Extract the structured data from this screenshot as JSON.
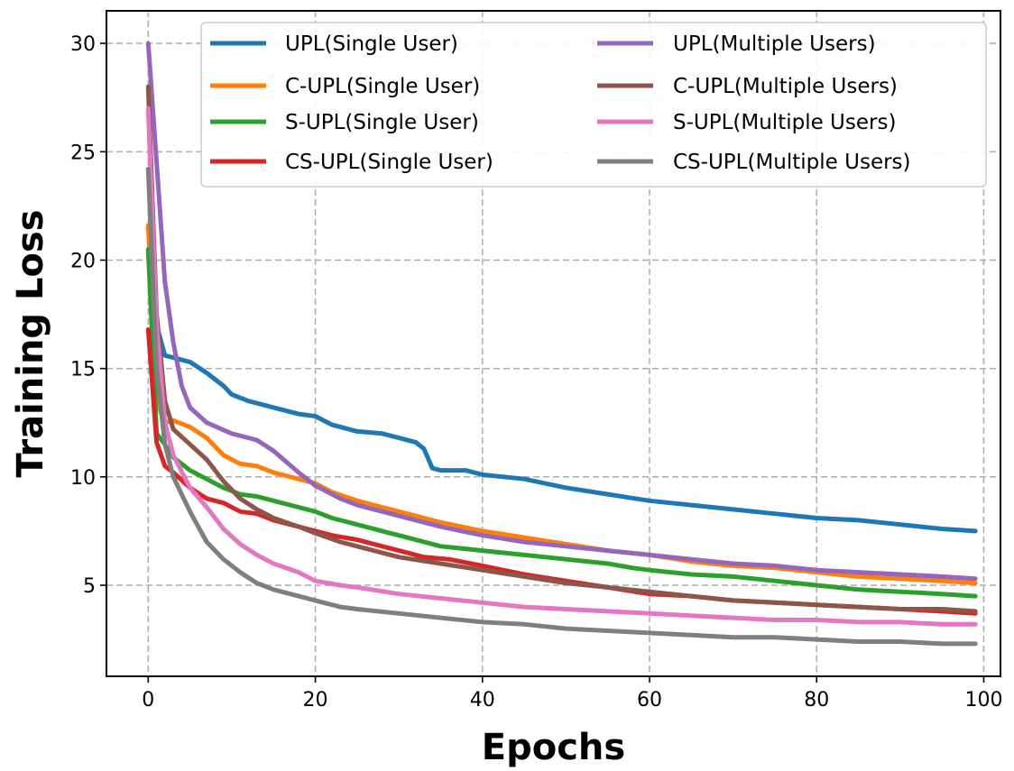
{
  "chart_data": {
    "type": "line",
    "xlabel": "Epochs",
    "ylabel": "Training Loss",
    "xlim": [
      -5,
      102
    ],
    "ylim": [
      0.8,
      31.5
    ],
    "xticks": [
      0,
      20,
      40,
      60,
      80,
      100
    ],
    "yticks": [
      5,
      10,
      15,
      20,
      25,
      30
    ],
    "grid": true,
    "legend_position": "top-right",
    "legend_columns": 2,
    "series": [
      {
        "name": "UPL(Single User)",
        "color": "#1f77b4",
        "points": [
          [
            0,
            21.5
          ],
          [
            1,
            17.0
          ],
          [
            2,
            15.6
          ],
          [
            3,
            15.5
          ],
          [
            5,
            15.3
          ],
          [
            7,
            14.8
          ],
          [
            9,
            14.2
          ],
          [
            10,
            13.8
          ],
          [
            12,
            13.5
          ],
          [
            15,
            13.2
          ],
          [
            18,
            12.9
          ],
          [
            20,
            12.8
          ],
          [
            22,
            12.4
          ],
          [
            25,
            12.1
          ],
          [
            28,
            12.0
          ],
          [
            30,
            11.8
          ],
          [
            32,
            11.6
          ],
          [
            33,
            11.3
          ],
          [
            34,
            10.4
          ],
          [
            35,
            10.3
          ],
          [
            38,
            10.3
          ],
          [
            40,
            10.1
          ],
          [
            45,
            9.9
          ],
          [
            50,
            9.5
          ],
          [
            55,
            9.2
          ],
          [
            60,
            8.9
          ],
          [
            65,
            8.7
          ],
          [
            70,
            8.5
          ],
          [
            75,
            8.3
          ],
          [
            80,
            8.1
          ],
          [
            85,
            8.0
          ],
          [
            90,
            7.8
          ],
          [
            95,
            7.6
          ],
          [
            99,
            7.5
          ]
        ]
      },
      {
        "name": "C-UPL(Single User)",
        "color": "#ff7f0e",
        "points": [
          [
            0,
            21.6
          ],
          [
            1,
            13.5
          ],
          [
            2,
            12.5
          ],
          [
            3,
            12.6
          ],
          [
            5,
            12.3
          ],
          [
            7,
            11.8
          ],
          [
            9,
            11.0
          ],
          [
            11,
            10.6
          ],
          [
            13,
            10.5
          ],
          [
            15,
            10.2
          ],
          [
            18,
            9.9
          ],
          [
            20,
            9.7
          ],
          [
            22,
            9.3
          ],
          [
            25,
            8.9
          ],
          [
            28,
            8.6
          ],
          [
            30,
            8.4
          ],
          [
            35,
            7.9
          ],
          [
            40,
            7.5
          ],
          [
            45,
            7.2
          ],
          [
            50,
            6.9
          ],
          [
            55,
            6.6
          ],
          [
            60,
            6.4
          ],
          [
            65,
            6.1
          ],
          [
            70,
            5.9
          ],
          [
            75,
            5.8
          ],
          [
            80,
            5.6
          ],
          [
            85,
            5.4
          ],
          [
            90,
            5.3
          ],
          [
            95,
            5.2
          ],
          [
            99,
            5.1
          ]
        ]
      },
      {
        "name": "S-UPL(Single User)",
        "color": "#2ca02c",
        "points": [
          [
            0,
            20.5
          ],
          [
            1,
            12.0
          ],
          [
            2,
            11.5
          ],
          [
            3,
            10.9
          ],
          [
            5,
            10.3
          ],
          [
            7,
            9.9
          ],
          [
            9,
            9.5
          ],
          [
            11,
            9.2
          ],
          [
            13,
            9.1
          ],
          [
            15,
            8.9
          ],
          [
            18,
            8.6
          ],
          [
            20,
            8.4
          ],
          [
            22,
            8.1
          ],
          [
            25,
            7.8
          ],
          [
            28,
            7.5
          ],
          [
            30,
            7.3
          ],
          [
            35,
            6.8
          ],
          [
            40,
            6.6
          ],
          [
            45,
            6.4
          ],
          [
            50,
            6.2
          ],
          [
            55,
            6.0
          ],
          [
            58,
            5.8
          ],
          [
            60,
            5.7
          ],
          [
            65,
            5.5
          ],
          [
            70,
            5.4
          ],
          [
            75,
            5.2
          ],
          [
            80,
            5.0
          ],
          [
            85,
            4.8
          ],
          [
            90,
            4.7
          ],
          [
            95,
            4.6
          ],
          [
            99,
            4.5
          ]
        ]
      },
      {
        "name": "CS-UPL(Single User)",
        "color": "#d62728",
        "points": [
          [
            0,
            16.8
          ],
          [
            1,
            11.6
          ],
          [
            2,
            10.5
          ],
          [
            3,
            10.2
          ],
          [
            5,
            9.5
          ],
          [
            7,
            9.0
          ],
          [
            9,
            8.8
          ],
          [
            11,
            8.4
          ],
          [
            13,
            8.3
          ],
          [
            15,
            8.0
          ],
          [
            18,
            7.7
          ],
          [
            20,
            7.5
          ],
          [
            22,
            7.3
          ],
          [
            25,
            7.1
          ],
          [
            28,
            6.8
          ],
          [
            30,
            6.6
          ],
          [
            33,
            6.3
          ],
          [
            36,
            6.2
          ],
          [
            40,
            5.9
          ],
          [
            45,
            5.5
          ],
          [
            50,
            5.2
          ],
          [
            55,
            4.9
          ],
          [
            60,
            4.6
          ],
          [
            65,
            4.5
          ],
          [
            70,
            4.3
          ],
          [
            75,
            4.2
          ],
          [
            80,
            4.1
          ],
          [
            85,
            4.0
          ],
          [
            90,
            3.9
          ],
          [
            95,
            3.8
          ],
          [
            99,
            3.7
          ]
        ]
      },
      {
        "name": "UPL(Multiple Users)",
        "color": "#9467bd",
        "points": [
          [
            0,
            30.0
          ],
          [
            1,
            24.5
          ],
          [
            2,
            19.0
          ],
          [
            3,
            16.2
          ],
          [
            4,
            14.2
          ],
          [
            5,
            13.2
          ],
          [
            7,
            12.5
          ],
          [
            10,
            12.0
          ],
          [
            13,
            11.7
          ],
          [
            15,
            11.2
          ],
          [
            18,
            10.2
          ],
          [
            20,
            9.6
          ],
          [
            23,
            9.0
          ],
          [
            25,
            8.7
          ],
          [
            30,
            8.2
          ],
          [
            35,
            7.7
          ],
          [
            40,
            7.3
          ],
          [
            45,
            7.0
          ],
          [
            50,
            6.8
          ],
          [
            55,
            6.6
          ],
          [
            60,
            6.4
          ],
          [
            65,
            6.2
          ],
          [
            70,
            6.0
          ],
          [
            75,
            5.9
          ],
          [
            80,
            5.7
          ],
          [
            85,
            5.6
          ],
          [
            90,
            5.5
          ],
          [
            95,
            5.4
          ],
          [
            99,
            5.3
          ]
        ]
      },
      {
        "name": "C-UPL(Multiple Users)",
        "color": "#8c564b",
        "points": [
          [
            0,
            28.0
          ],
          [
            1,
            17.5
          ],
          [
            2,
            13.5
          ],
          [
            3,
            12.2
          ],
          [
            5,
            11.5
          ],
          [
            7,
            10.8
          ],
          [
            9,
            9.8
          ],
          [
            11,
            9.0
          ],
          [
            13,
            8.5
          ],
          [
            15,
            8.1
          ],
          [
            18,
            7.7
          ],
          [
            20,
            7.4
          ],
          [
            23,
            7.0
          ],
          [
            25,
            6.8
          ],
          [
            30,
            6.3
          ],
          [
            35,
            6.0
          ],
          [
            40,
            5.7
          ],
          [
            45,
            5.4
          ],
          [
            50,
            5.1
          ],
          [
            55,
            4.9
          ],
          [
            60,
            4.7
          ],
          [
            65,
            4.5
          ],
          [
            70,
            4.3
          ],
          [
            75,
            4.2
          ],
          [
            80,
            4.1
          ],
          [
            85,
            4.0
          ],
          [
            90,
            3.9
          ],
          [
            95,
            3.9
          ],
          [
            99,
            3.8
          ]
        ]
      },
      {
        "name": "S-UPL(Multiple Users)",
        "color": "#e377c2",
        "points": [
          [
            0,
            27.0
          ],
          [
            1,
            17.0
          ],
          [
            2,
            12.5
          ],
          [
            3,
            11.0
          ],
          [
            5,
            9.5
          ],
          [
            7,
            8.6
          ],
          [
            9,
            7.6
          ],
          [
            11,
            6.9
          ],
          [
            13,
            6.4
          ],
          [
            15,
            6.0
          ],
          [
            18,
            5.6
          ],
          [
            20,
            5.2
          ],
          [
            23,
            5.0
          ],
          [
            25,
            4.9
          ],
          [
            30,
            4.6
          ],
          [
            35,
            4.4
          ],
          [
            40,
            4.2
          ],
          [
            45,
            4.0
          ],
          [
            50,
            3.9
          ],
          [
            55,
            3.8
          ],
          [
            60,
            3.7
          ],
          [
            65,
            3.6
          ],
          [
            70,
            3.5
          ],
          [
            75,
            3.4
          ],
          [
            80,
            3.4
          ],
          [
            85,
            3.3
          ],
          [
            90,
            3.3
          ],
          [
            95,
            3.2
          ],
          [
            99,
            3.2
          ]
        ]
      },
      {
        "name": "CS-UPL(Multiple Users)",
        "color": "#7f7f7f",
        "points": [
          [
            0,
            24.2
          ],
          [
            1,
            15.0
          ],
          [
            2,
            11.5
          ],
          [
            3,
            10.0
          ],
          [
            5,
            8.4
          ],
          [
            7,
            7.0
          ],
          [
            9,
            6.2
          ],
          [
            11,
            5.6
          ],
          [
            13,
            5.1
          ],
          [
            15,
            4.8
          ],
          [
            18,
            4.5
          ],
          [
            20,
            4.3
          ],
          [
            23,
            4.0
          ],
          [
            25,
            3.9
          ],
          [
            30,
            3.7
          ],
          [
            35,
            3.5
          ],
          [
            40,
            3.3
          ],
          [
            45,
            3.2
          ],
          [
            50,
            3.0
          ],
          [
            55,
            2.9
          ],
          [
            60,
            2.8
          ],
          [
            65,
            2.7
          ],
          [
            70,
            2.6
          ],
          [
            75,
            2.6
          ],
          [
            80,
            2.5
          ],
          [
            85,
            2.4
          ],
          [
            90,
            2.4
          ],
          [
            95,
            2.3
          ],
          [
            99,
            2.3
          ]
        ]
      }
    ]
  }
}
